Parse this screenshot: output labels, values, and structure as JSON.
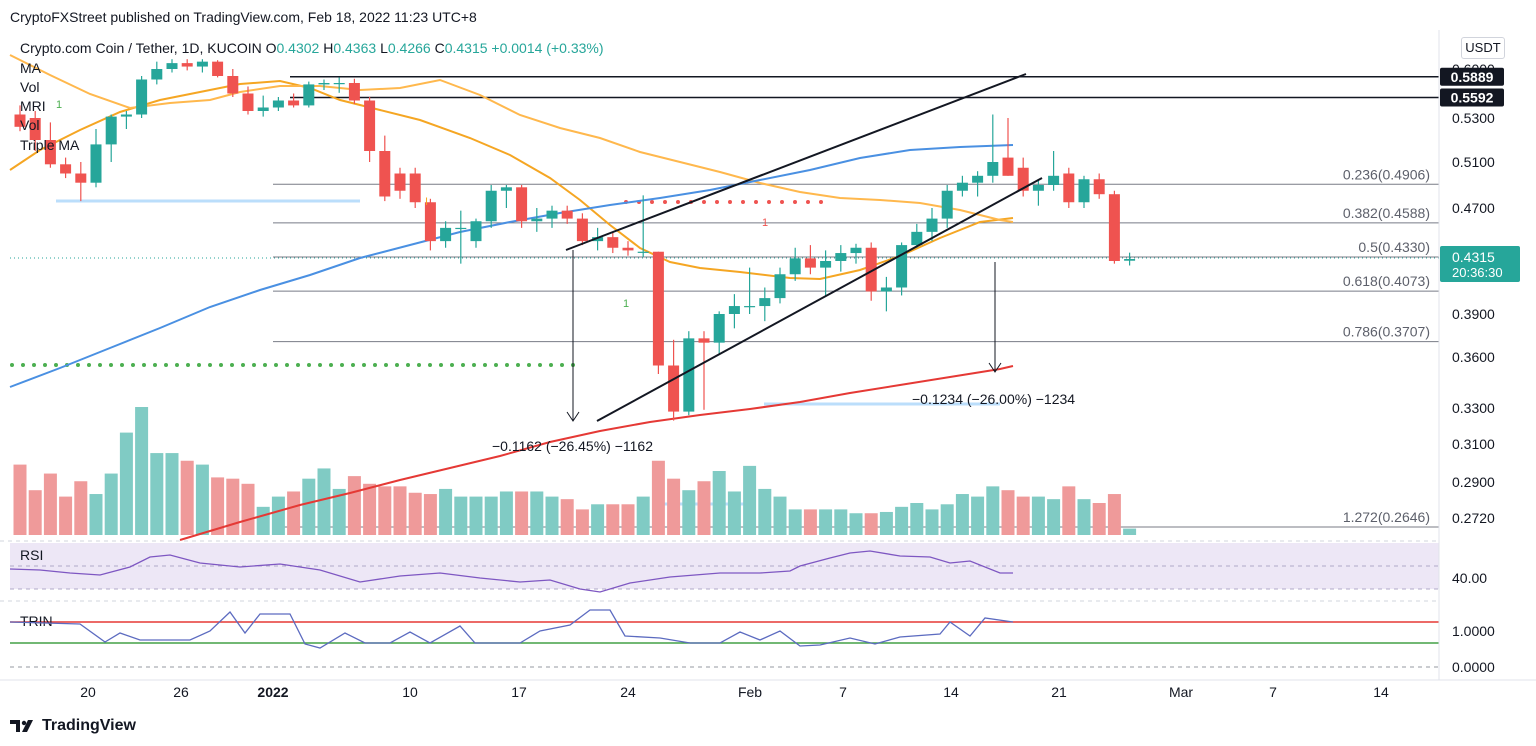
{
  "header": {
    "publisher": "CryptoFXStreet published on TradingView.com, Feb 18, 2022 11:23 UTC+8"
  },
  "symbol": {
    "name": "Crypto.com Coin / Tether, 1D, KUCOIN",
    "o_label": "O",
    "o": "0.4302",
    "h_label": "H",
    "h": "0.4363",
    "l_label": "L",
    "l": "0.4266",
    "c_label": "C",
    "c": "0.4315",
    "change": "+0.0014 (+0.33%)"
  },
  "indicators": [
    "MA",
    "Vol",
    "MRI",
    "Vol",
    "Triple MA"
  ],
  "currency_button": "USDT",
  "colors": {
    "up": "#26a69a",
    "down": "#ef5350",
    "ma_orange": "#f5a623",
    "ma_dark_orange": "#e8900c",
    "ma_blue": "#4a90e2",
    "ma_red": "#e53935",
    "rsi": "#7e57c2",
    "trin": "#5c6bc0",
    "grid": "#e0e3eb",
    "fib": "#787b86"
  },
  "footer": {
    "logo_text": "TradingView"
  },
  "chart_data": {
    "type": "candlestick",
    "title": "Crypto.com Coin / Tether, 1D, KUCOIN",
    "y_axis_labels": [
      "0.6000",
      "0.5300",
      "0.5100",
      "0.4700",
      "0.3900",
      "0.3600",
      "0.3300",
      "0.3100",
      "0.2900",
      "0.2720"
    ],
    "ylim": [
      0.262,
      0.62
    ],
    "x_axis_labels": [
      "20",
      "26",
      "2022",
      "10",
      "17",
      "24",
      "Feb",
      "7",
      "14",
      "21",
      "Mar",
      "7",
      "14"
    ],
    "price_tags": [
      {
        "value": "0.5889",
        "style": "black"
      },
      {
        "value": "0.5592",
        "style": "black"
      },
      {
        "value": "0.4315",
        "style": "current",
        "countdown": "20:36:30"
      }
    ],
    "fib_levels": [
      {
        "ratio": "0.236",
        "price": 0.4906,
        "label": "0.236(0.4906)"
      },
      {
        "ratio": "0.382",
        "price": 0.4588,
        "label": "0.382(0.4588)"
      },
      {
        "ratio": "0.5",
        "price": 0.433,
        "label": "0.5(0.4330)"
      },
      {
        "ratio": "0.618",
        "price": 0.4073,
        "label": "0.618(0.4073)"
      },
      {
        "ratio": "0.786",
        "price": 0.3707,
        "label": "0.786(0.3707)"
      },
      {
        "ratio": "1.272",
        "price": 0.2646,
        "label": "1.272(0.2646)"
      }
    ],
    "horizontal_levels": [
      0.5889,
      0.5592
    ],
    "candles": [
      {
        "o": 0.535,
        "h": 0.548,
        "l": 0.524,
        "c": 0.526
      },
      {
        "o": 0.53,
        "h": 0.54,
        "l": 0.515,
        "c": 0.52
      },
      {
        "o": 0.52,
        "h": 0.528,
        "l": 0.505,
        "c": 0.508
      },
      {
        "o": 0.508,
        "h": 0.512,
        "l": 0.496,
        "c": 0.5
      },
      {
        "o": 0.5,
        "h": 0.51,
        "l": 0.476,
        "c": 0.492
      },
      {
        "o": 0.492,
        "h": 0.525,
        "l": 0.488,
        "c": 0.518
      },
      {
        "o": 0.518,
        "h": 0.535,
        "l": 0.51,
        "c": 0.532
      },
      {
        "o": 0.532,
        "h": 0.54,
        "l": 0.525,
        "c": 0.535
      },
      {
        "o": 0.535,
        "h": 0.59,
        "l": 0.53,
        "c": 0.585
      },
      {
        "o": 0.585,
        "h": 0.615,
        "l": 0.578,
        "c": 0.6
      },
      {
        "o": 0.6,
        "h": 0.62,
        "l": 0.595,
        "c": 0.612
      },
      {
        "o": 0.612,
        "h": 0.62,
        "l": 0.598,
        "c": 0.605
      },
      {
        "o": 0.605,
        "h": 0.62,
        "l": 0.595,
        "c": 0.615
      },
      {
        "o": 0.615,
        "h": 0.618,
        "l": 0.588,
        "c": 0.59
      },
      {
        "o": 0.59,
        "h": 0.6,
        "l": 0.56,
        "c": 0.565
      },
      {
        "o": 0.565,
        "h": 0.575,
        "l": 0.535,
        "c": 0.54
      },
      {
        "o": 0.54,
        "h": 0.562,
        "l": 0.532,
        "c": 0.545
      },
      {
        "o": 0.545,
        "h": 0.56,
        "l": 0.54,
        "c": 0.555
      },
      {
        "o": 0.555,
        "h": 0.565,
        "l": 0.545,
        "c": 0.548
      },
      {
        "o": 0.548,
        "h": 0.582,
        "l": 0.545,
        "c": 0.578
      },
      {
        "o": 0.578,
        "h": 0.585,
        "l": 0.57,
        "c": 0.58
      },
      {
        "o": 0.58,
        "h": 0.588,
        "l": 0.566,
        "c": 0.58
      },
      {
        "o": 0.58,
        "h": 0.586,
        "l": 0.55,
        "c": 0.555
      },
      {
        "o": 0.555,
        "h": 0.56,
        "l": 0.51,
        "c": 0.515
      },
      {
        "o": 0.515,
        "h": 0.522,
        "l": 0.476,
        "c": 0.48
      },
      {
        "o": 0.5,
        "h": 0.505,
        "l": 0.478,
        "c": 0.485
      },
      {
        "o": 0.5,
        "h": 0.505,
        "l": 0.47,
        "c": 0.475
      },
      {
        "o": 0.475,
        "h": 0.478,
        "l": 0.438,
        "c": 0.445
      },
      {
        "o": 0.445,
        "h": 0.46,
        "l": 0.44,
        "c": 0.455
      },
      {
        "o": 0.455,
        "h": 0.468,
        "l": 0.428,
        "c": 0.455
      },
      {
        "o": 0.445,
        "h": 0.462,
        "l": 0.44,
        "c": 0.46
      },
      {
        "o": 0.46,
        "h": 0.49,
        "l": 0.455,
        "c": 0.485
      },
      {
        "o": 0.485,
        "h": 0.49,
        "l": 0.47,
        "c": 0.488
      },
      {
        "o": 0.488,
        "h": 0.49,
        "l": 0.455,
        "c": 0.46
      },
      {
        "o": 0.46,
        "h": 0.47,
        "l": 0.452,
        "c": 0.462
      },
      {
        "o": 0.462,
        "h": 0.472,
        "l": 0.455,
        "c": 0.468
      },
      {
        "o": 0.468,
        "h": 0.472,
        "l": 0.458,
        "c": 0.462
      },
      {
        "o": 0.462,
        "h": 0.466,
        "l": 0.442,
        "c": 0.445
      },
      {
        "o": 0.445,
        "h": 0.455,
        "l": 0.438,
        "c": 0.448
      },
      {
        "o": 0.448,
        "h": 0.452,
        "l": 0.436,
        "c": 0.44
      },
      {
        "o": 0.44,
        "h": 0.445,
        "l": 0.434,
        "c": 0.438
      },
      {
        "o": 0.437,
        "h": 0.481,
        "l": 0.433,
        "c": 0.437
      },
      {
        "o": 0.437,
        "h": 0.437,
        "l": 0.35,
        "c": 0.355
      },
      {
        "o": 0.355,
        "h": 0.372,
        "l": 0.323,
        "c": 0.328
      },
      {
        "o": 0.328,
        "h": 0.378,
        "l": 0.326,
        "c": 0.373
      },
      {
        "o": 0.373,
        "h": 0.378,
        "l": 0.329,
        "c": 0.37
      },
      {
        "o": 0.37,
        "h": 0.392,
        "l": 0.362,
        "c": 0.39
      },
      {
        "o": 0.39,
        "h": 0.405,
        "l": 0.38,
        "c": 0.396
      },
      {
        "o": 0.396,
        "h": 0.425,
        "l": 0.39,
        "c": 0.396
      },
      {
        "o": 0.396,
        "h": 0.41,
        "l": 0.385,
        "c": 0.402
      },
      {
        "o": 0.402,
        "h": 0.425,
        "l": 0.398,
        "c": 0.42
      },
      {
        "o": 0.42,
        "h": 0.44,
        "l": 0.415,
        "c": 0.432
      },
      {
        "o": 0.432,
        "h": 0.442,
        "l": 0.42,
        "c": 0.425
      },
      {
        "o": 0.425,
        "h": 0.438,
        "l": 0.403,
        "c": 0.43
      },
      {
        "o": 0.43,
        "h": 0.442,
        "l": 0.422,
        "c": 0.436
      },
      {
        "o": 0.436,
        "h": 0.443,
        "l": 0.428,
        "c": 0.44
      },
      {
        "o": 0.44,
        "h": 0.444,
        "l": 0.4,
        "c": 0.407
      },
      {
        "o": 0.407,
        "h": 0.418,
        "l": 0.392,
        "c": 0.41
      },
      {
        "o": 0.41,
        "h": 0.444,
        "l": 0.404,
        "c": 0.442
      },
      {
        "o": 0.442,
        "h": 0.458,
        "l": 0.44,
        "c": 0.452
      },
      {
        "o": 0.452,
        "h": 0.47,
        "l": 0.445,
        "c": 0.462
      },
      {
        "o": 0.462,
        "h": 0.49,
        "l": 0.455,
        "c": 0.485
      },
      {
        "o": 0.485,
        "h": 0.498,
        "l": 0.48,
        "c": 0.492
      },
      {
        "o": 0.492,
        "h": 0.502,
        "l": 0.48,
        "c": 0.498
      },
      {
        "o": 0.498,
        "h": 0.535,
        "l": 0.492,
        "c": 0.51
      },
      {
        "o": 0.512,
        "h": 0.53,
        "l": 0.498,
        "c": 0.498
      },
      {
        "o": 0.505,
        "h": 0.512,
        "l": 0.48,
        "c": 0.485
      },
      {
        "o": 0.485,
        "h": 0.495,
        "l": 0.472,
        "c": 0.49
      },
      {
        "o": 0.49,
        "h": 0.515,
        "l": 0.485,
        "c": 0.498
      },
      {
        "o": 0.5,
        "h": 0.505,
        "l": 0.47,
        "c": 0.475
      },
      {
        "o": 0.475,
        "h": 0.498,
        "l": 0.47,
        "c": 0.495
      },
      {
        "o": 0.495,
        "h": 0.5,
        "l": 0.478,
        "c": 0.482
      },
      {
        "o": 0.482,
        "h": 0.485,
        "l": 0.428,
        "c": 0.43
      },
      {
        "o": 0.4302,
        "h": 0.4363,
        "l": 0.4266,
        "c": 0.4315
      }
    ],
    "volumes": [
      0.55,
      0.35,
      0.48,
      0.3,
      0.42,
      0.32,
      0.48,
      0.8,
      1.0,
      0.64,
      0.64,
      0.58,
      0.55,
      0.45,
      0.44,
      0.4,
      0.22,
      0.3,
      0.34,
      0.44,
      0.52,
      0.36,
      0.46,
      0.4,
      0.38,
      0.38,
      0.33,
      0.32,
      0.36,
      0.3,
      0.3,
      0.3,
      0.34,
      0.34,
      0.34,
      0.3,
      0.28,
      0.2,
      0.24,
      0.24,
      0.24,
      0.3,
      0.58,
      0.44,
      0.35,
      0.42,
      0.5,
      0.34,
      0.54,
      0.36,
      0.3,
      0.2,
      0.2,
      0.2,
      0.2,
      0.17,
      0.17,
      0.18,
      0.22,
      0.25,
      0.2,
      0.24,
      0.32,
      0.3,
      0.38,
      0.35,
      0.3,
      0.3,
      0.28,
      0.38,
      0.28,
      0.25,
      0.32,
      0.05
    ],
    "annotations": [
      {
        "text": "−0.1162 (−26.45%) −1162"
      },
      {
        "text": "−0.1234 (−26.00%) −1234"
      }
    ],
    "rsi": {
      "label": "RSI",
      "axis_label": "40.00"
    },
    "trin": {
      "label": "TRIN",
      "axis_labels": [
        "1.0000",
        "0.0000"
      ]
    }
  }
}
